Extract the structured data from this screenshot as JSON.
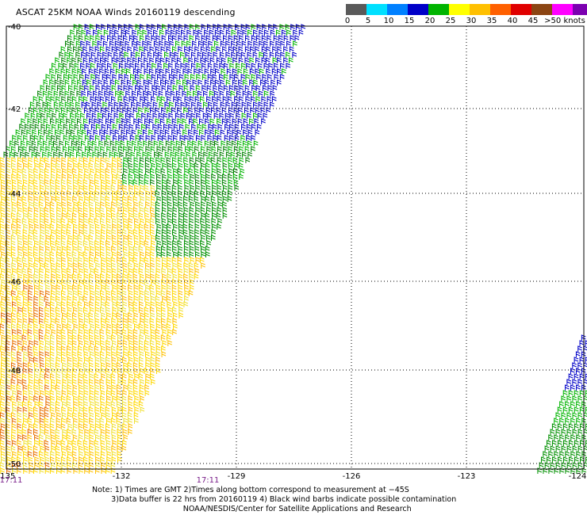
{
  "title": "ASCAT 25KM NOAA Winds 20160119 descending",
  "legend": {
    "labels": [
      "0",
      "5",
      "10",
      "15",
      "20",
      "25",
      "30",
      "35",
      "40",
      "45",
      ">50 knots"
    ],
    "colors": [
      "#5a5a5a",
      "#00e0ff",
      "#0080ff",
      "#0000c8",
      "#00b400",
      "#ffff00",
      "#ffc000",
      "#ff6000",
      "#e00000",
      "#8b4513",
      "#ff00ff",
      "#7b00b0"
    ]
  },
  "map": {
    "lon_ticks": [
      "-135",
      "-132",
      "-129",
      "-126",
      "-123",
      "-124"
    ],
    "lat_ticks": [
      "-40",
      "-42",
      "-44",
      "-46",
      "-48",
      "-50"
    ],
    "times": [
      "17:11",
      "17:11"
    ]
  },
  "notes": [
    "Note: 1) Times are GMT 2)Times along bottom correspond to measurement at −45S",
    "        3)Data buffer is 22 hrs from 20160119 4) Black wind barbs indicate possible contamination",
    "                                      NOAA/NESDIS/Center for Satellite Applications and Research"
  ]
}
